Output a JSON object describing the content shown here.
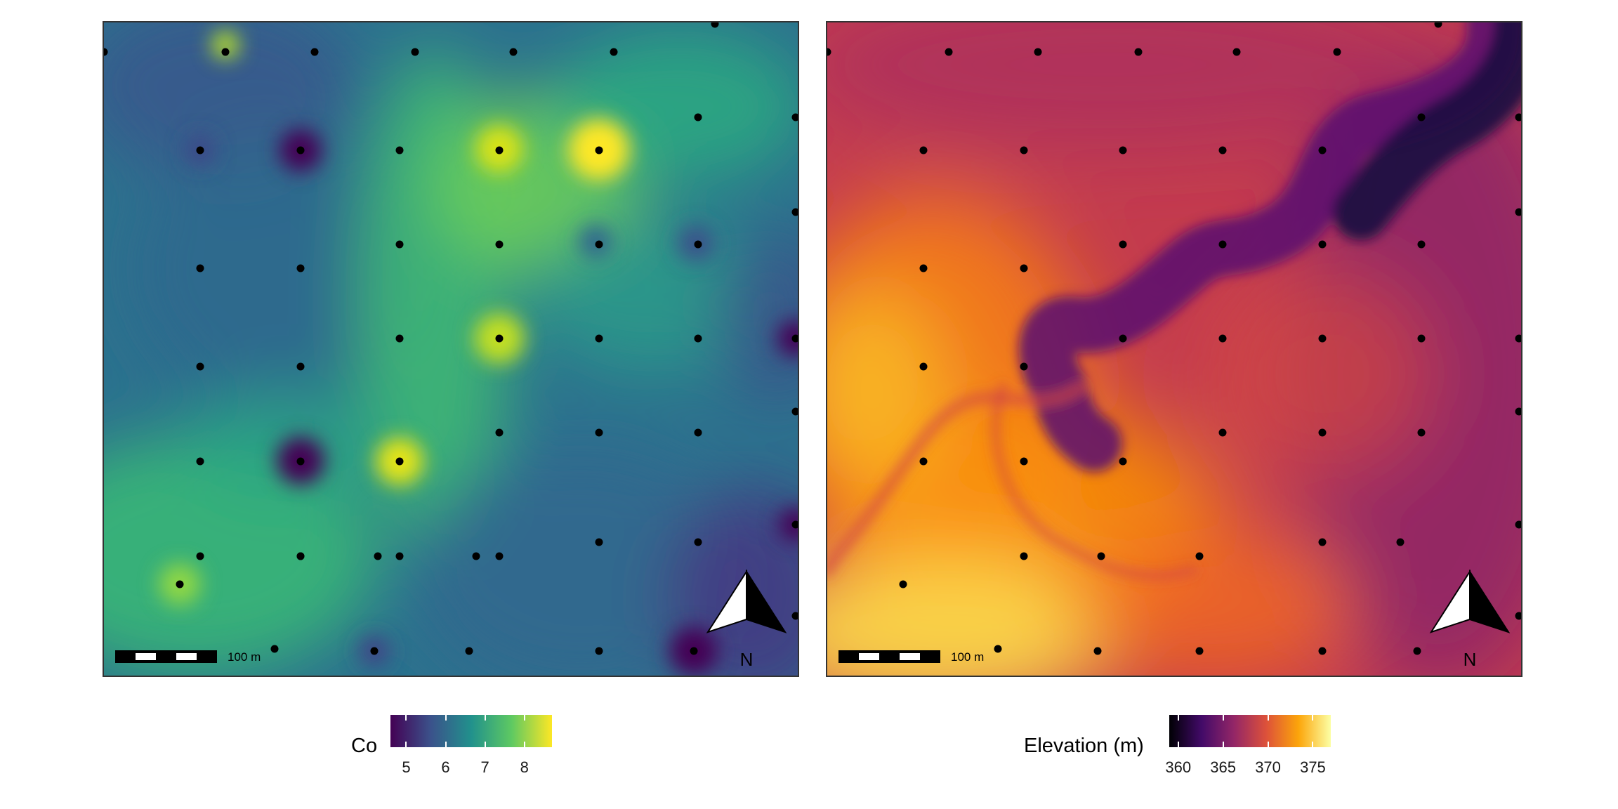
{
  "maps": [
    {
      "id": "co",
      "legend": {
        "title": "Co",
        "ticks": [
          "5",
          "6",
          "7",
          "8"
        ],
        "tick_values": [
          5,
          6,
          7,
          8
        ],
        "range": [
          4.6,
          8.7
        ],
        "palette": "viridis",
        "colors": [
          "#440154",
          "#3b528b",
          "#21918c",
          "#5ec962",
          "#fde725"
        ]
      },
      "scale_bar": {
        "label": "100 m",
        "length_m": 100
      },
      "north_arrow": {
        "label": "N"
      }
    },
    {
      "id": "elevation",
      "legend": {
        "title": "Elevation (m)",
        "ticks": [
          "360",
          "365",
          "370",
          "375"
        ],
        "tick_values": [
          360,
          365,
          370,
          375
        ],
        "range": [
          359,
          377
        ],
        "palette": "inferno",
        "colors": [
          "#000004",
          "#420a68",
          "#932667",
          "#dd513a",
          "#fca50a",
          "#fcffa4"
        ]
      },
      "scale_bar": {
        "label": "100 m",
        "length_m": 100
      },
      "north_arrow": {
        "label": "N"
      }
    }
  ]
}
